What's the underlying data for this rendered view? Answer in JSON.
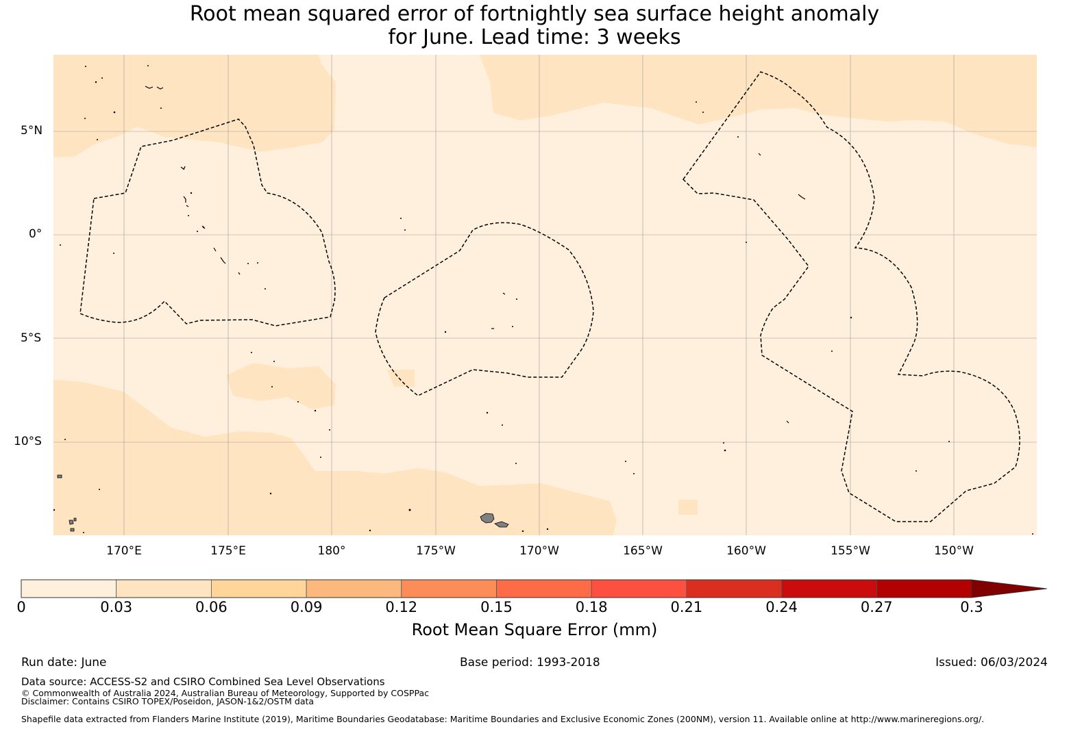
{
  "title": {
    "line1": "Root mean squared error of fortnightly sea surface height anomaly",
    "line2": "for June. Lead time: 3 weeks"
  },
  "map": {
    "lat_labels": [
      "5°N",
      "0°",
      "5°S",
      "10°S"
    ],
    "lon_labels": [
      "170°E",
      "175°E",
      "180°",
      "175°W",
      "170°W",
      "165°W",
      "160°W",
      "155°W",
      "150°W"
    ],
    "colors": {
      "band_0_003": "#fff0dd",
      "band_003_006": "#ffe4c1",
      "land": "#808080",
      "coast": "#000000",
      "eez_boundary": "#000000",
      "gridline": "#9a9a9a"
    }
  },
  "colorbar": {
    "label": "Root Mean Square Error (mm)",
    "ticks": [
      "0",
      "0.03",
      "0.06",
      "0.09",
      "0.12",
      "0.15",
      "0.18",
      "0.21",
      "0.24",
      "0.27",
      "0.3"
    ],
    "colors": [
      "#fff0dd",
      "#ffe4c1",
      "#ffd59a",
      "#fdb87e",
      "#fc8d59",
      "#fe6b47",
      "#fe5040",
      "#da2e20",
      "#cb0c0c",
      "#b30000",
      "#800000"
    ],
    "extend": "max"
  },
  "footer": {
    "run_date": "Run date: June",
    "base_period": "Base period: 1993-2018",
    "issued": "Issued: 06/03/2024",
    "data_source": "Data source: ACCESS-S2 and CSIRO Combined Sea Level Observations",
    "copyright": "© Commonwealth of Australia 2024, Australian Bureau of Meteorology, Supported by COSPPac",
    "disclaimer": "Disclaimer: Contains CSIRO TOPEX/Poseidon, JASON-1&2/OSTM data",
    "shapefile": "Shapefile data extracted from Flanders Marine Institute (2019), Maritime Boundaries Geodatabase: Maritime Boundaries and Exclusive Economic Zones (200NM), version 11. Available online at http://www.marineregions.org/."
  }
}
